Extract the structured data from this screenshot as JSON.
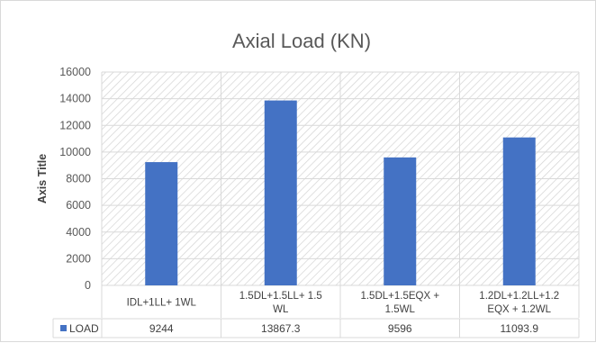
{
  "chart_data": {
    "type": "bar",
    "title": "Axial Load (KN)",
    "ylabel": "Axis Title",
    "xlabel": "",
    "ylim": [
      0,
      16000
    ],
    "yticks": [
      0,
      2000,
      4000,
      6000,
      8000,
      10000,
      12000,
      14000,
      16000
    ],
    "grid": true,
    "categories": [
      [
        "IDL+1LL+ 1WL"
      ],
      [
        "1.5DL+1.5LL+ 1.5",
        "WL"
      ],
      [
        "1.5DL+1.5EQX +",
        "1.5WL"
      ],
      [
        "1.2DL+1.2LL+1.2",
        "EQX + 1.2WL"
      ]
    ],
    "series": [
      {
        "name": "LOAD",
        "color": "#4472c4",
        "values": [
          9244,
          13867.3,
          9596,
          11093.9
        ],
        "value_labels": [
          "9244",
          "13867.3",
          "9596",
          "11093.9"
        ]
      }
    ],
    "legend": "data-table"
  }
}
